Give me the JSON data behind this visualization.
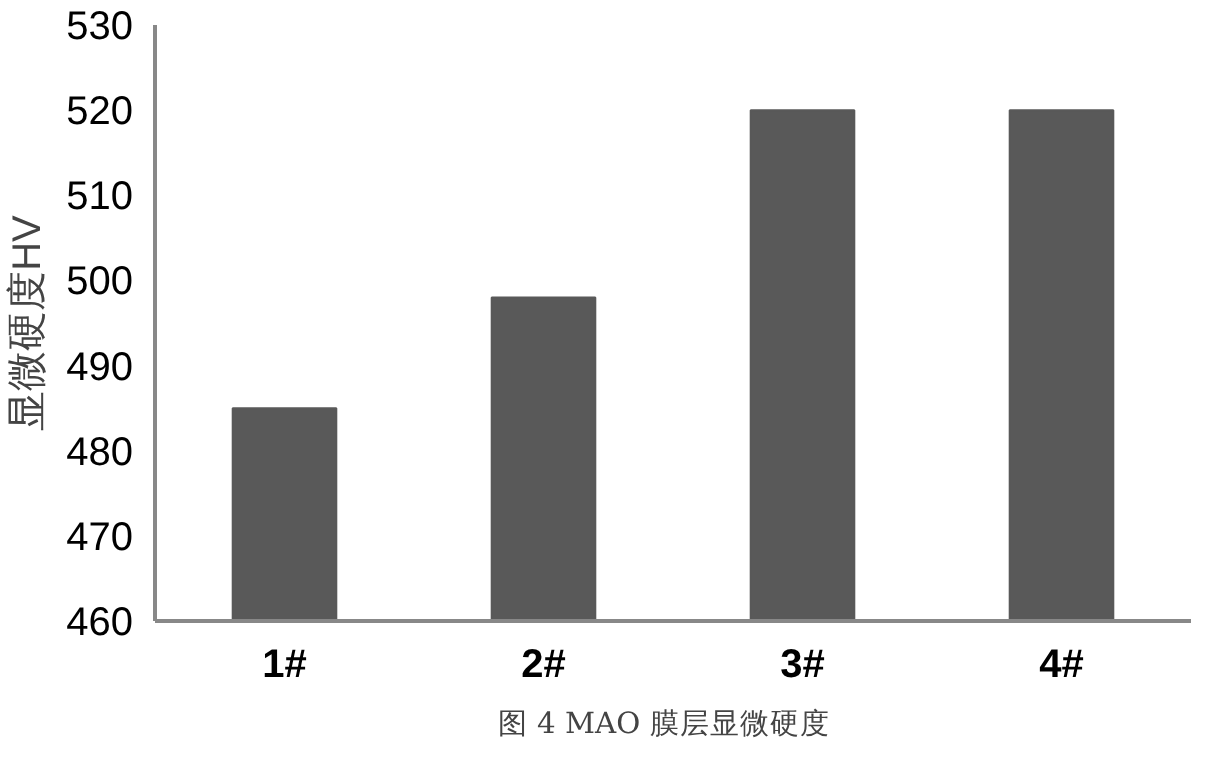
{
  "chart_data": {
    "type": "bar",
    "title": "图 4   MAO 膜层显微硬度",
    "ylabel": "显微硬度HV",
    "categories": [
      "1#",
      "2#",
      "3#",
      "4#"
    ],
    "values": [
      485,
      498,
      520,
      520
    ],
    "color": "#595959",
    "ylim": [
      460,
      530
    ],
    "yticks": [
      460,
      470,
      480,
      490,
      500,
      510,
      520,
      530
    ],
    "grid": false
  }
}
